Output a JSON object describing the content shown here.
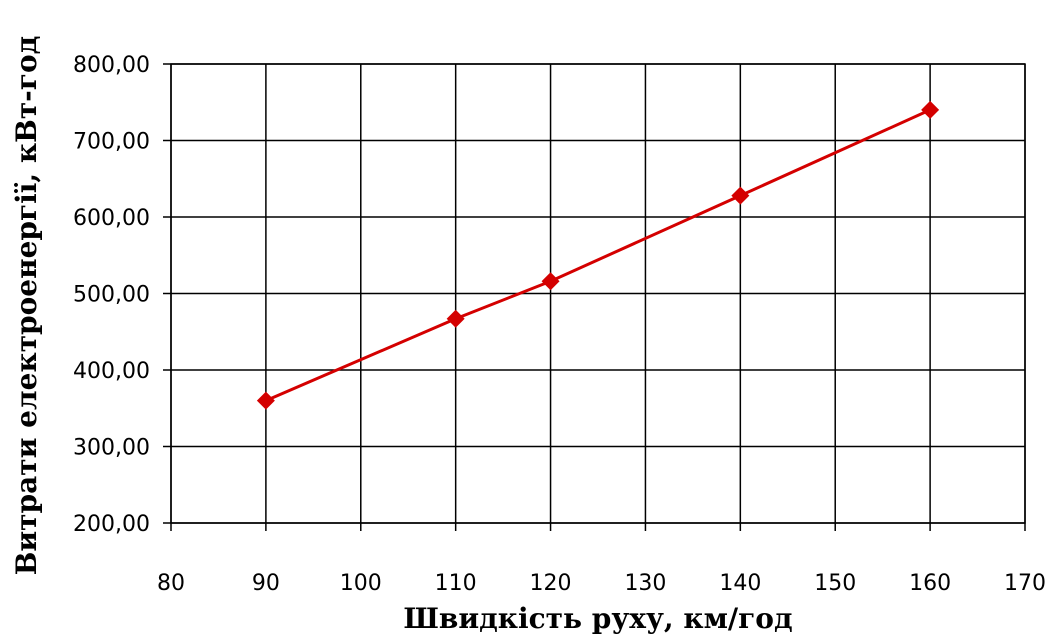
{
  "chart_data": {
    "type": "line",
    "title": "",
    "xlabel": "Швидкість руху, км/год",
    "ylabel": "Витрати електроенергії, кВт-год",
    "xlim": [
      80,
      170
    ],
    "ylim": [
      200,
      800
    ],
    "x_ticks": [
      80,
      90,
      100,
      110,
      120,
      130,
      140,
      150,
      160,
      170
    ],
    "x_tick_labels": [
      "80",
      "90",
      "100",
      "110",
      "120",
      "130",
      "140",
      "150",
      "160",
      "170"
    ],
    "y_ticks": [
      200,
      300,
      400,
      500,
      600,
      700,
      800
    ],
    "y_tick_labels": [
      "200,00",
      "300,00",
      "400,00",
      "500,00",
      "600,00",
      "700,00",
      "800,00"
    ],
    "grid": true,
    "legend": "none",
    "series": [
      {
        "color": "#d40000",
        "marker": "diamond",
        "x": [
          90,
          110,
          120,
          140,
          160
        ],
        "values": [
          360,
          467,
          516,
          628,
          740
        ]
      }
    ]
  }
}
